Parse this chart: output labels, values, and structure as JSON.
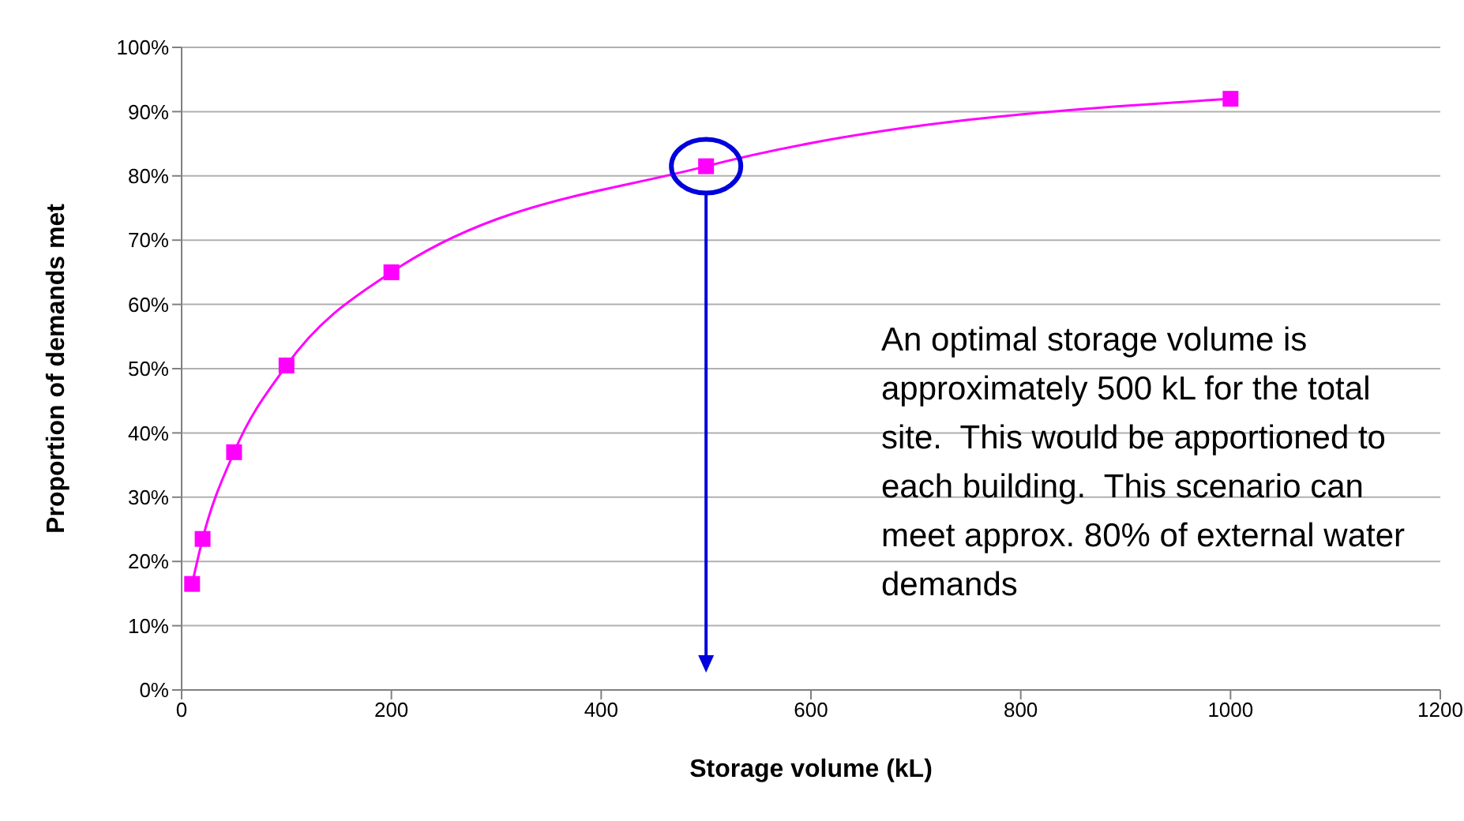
{
  "chart_data": {
    "type": "line",
    "xlabel": "Storage volume (kL)",
    "ylabel": "Proportion of demands met",
    "x": [
      10,
      20,
      50,
      100,
      200,
      500,
      1000
    ],
    "series": [
      {
        "color": "#ff00ff",
        "values": [
          16.5,
          23.5,
          37,
          50.5,
          65,
          81.5,
          92
        ]
      }
    ],
    "xlim": [
      0,
      1200
    ],
    "xticks": [
      0,
      200,
      400,
      600,
      800,
      1000,
      1200
    ],
    "ylim": [
      0,
      100
    ],
    "yticks": [
      {
        "value": 0,
        "label": "0%"
      },
      {
        "value": 10,
        "label": "10%"
      },
      {
        "value": 20,
        "label": "20%"
      },
      {
        "value": 30,
        "label": "30%"
      },
      {
        "value": 40,
        "label": "40%"
      },
      {
        "value": 50,
        "label": "50%"
      },
      {
        "value": 60,
        "label": "60%"
      },
      {
        "value": 70,
        "label": "70%"
      },
      {
        "value": 80,
        "label": "80%"
      },
      {
        "value": 90,
        "label": "90%"
      },
      {
        "value": 100,
        "label": "100%"
      }
    ],
    "grid": "y",
    "marker": "square",
    "line_style": "solid",
    "ref_lines": [
      {
        "axis": "x",
        "value": 500,
        "color": "#0000dd"
      }
    ],
    "annotations": [
      "An optimal storage volume is approximately 500 kL for the total site.  This would be apportioned to each building.  This scenario can meet approx. 80% of external water demands"
    ]
  }
}
